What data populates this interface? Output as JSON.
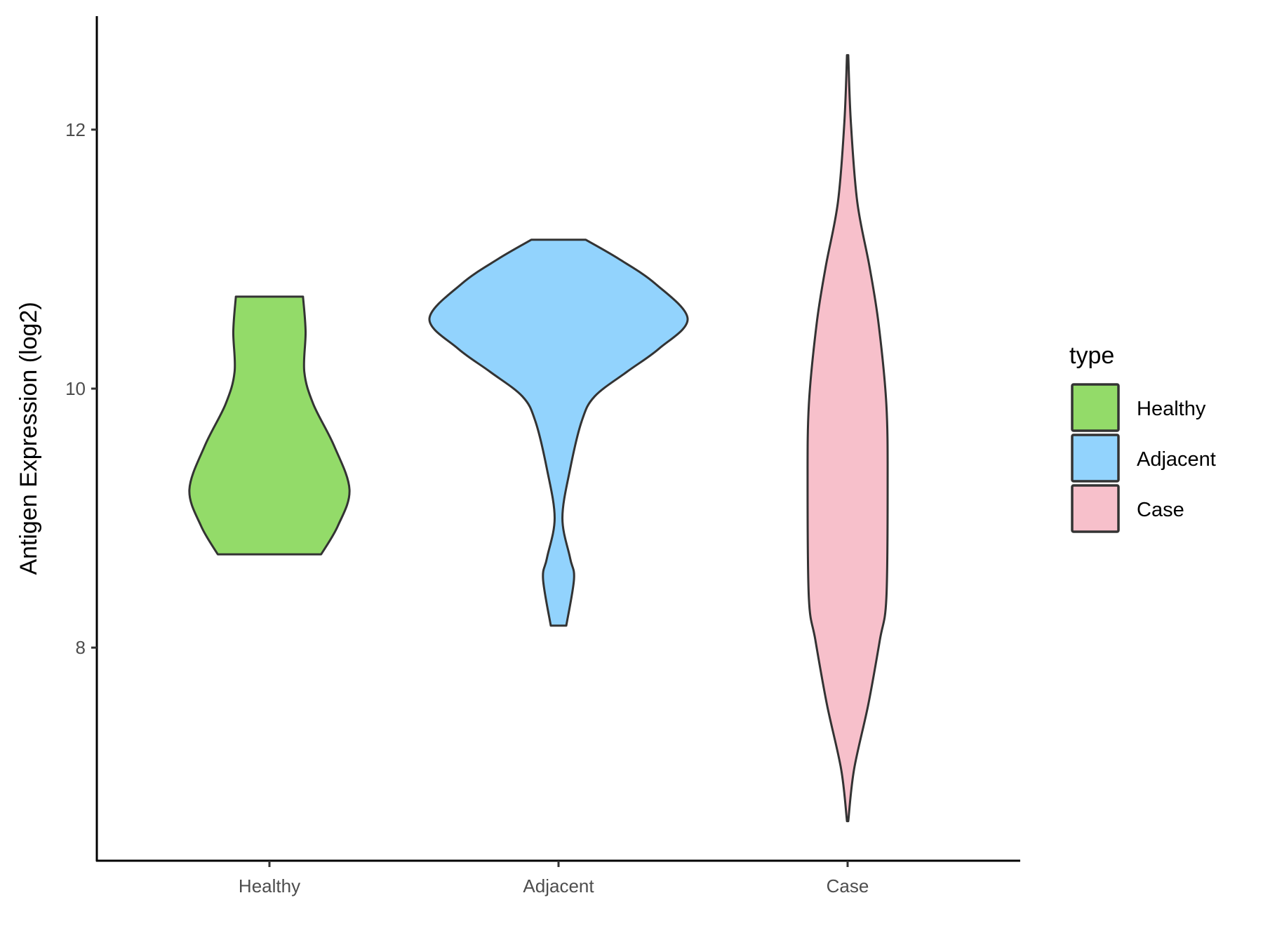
{
  "chart_data": {
    "type": "violin",
    "title": "",
    "xlabel": "",
    "ylabel": "Antigen Expression (log2)",
    "categories": [
      "Healthy",
      "Adjacent",
      "Case"
    ],
    "yticks": [
      8,
      10,
      12
    ],
    "ylim": [
      6.35,
      12.875
    ],
    "grid": false,
    "legend": {
      "title": "type",
      "placement": "right",
      "entries": [
        "Healthy",
        "Adjacent",
        "Case"
      ]
    },
    "colors": {
      "Healthy": "#93DB69",
      "Adjacent": "#92D3FD",
      "Case": "#F7C0CB",
      "outline": "#333333"
    },
    "series": [
      {
        "name": "Healthy",
        "profile": [
          [
            10.71,
            0.26
          ],
          [
            10.44,
            0.28
          ],
          [
            10.13,
            0.27
          ],
          [
            9.88,
            0.34
          ],
          [
            9.56,
            0.5
          ],
          [
            9.22,
            0.62
          ],
          [
            8.94,
            0.53
          ],
          [
            8.72,
            0.4
          ]
        ]
      },
      {
        "name": "Adjacent",
        "profile": [
          [
            11.15,
            0.21
          ],
          [
            11.0,
            0.47
          ],
          [
            10.81,
            0.75
          ],
          [
            10.54,
            1.0
          ],
          [
            10.31,
            0.78
          ],
          [
            10.13,
            0.53
          ],
          [
            9.94,
            0.28
          ],
          [
            9.75,
            0.18
          ],
          [
            9.38,
            0.09
          ],
          [
            9.0,
            0.03
          ],
          [
            8.69,
            0.09
          ],
          [
            8.53,
            0.12
          ],
          [
            8.17,
            0.06
          ]
        ]
      },
      {
        "name": "Case",
        "profile": [
          [
            12.575,
            0.005
          ],
          [
            12.06,
            0.025
          ],
          [
            11.44,
            0.075
          ],
          [
            10.94,
            0.17
          ],
          [
            10.5,
            0.24
          ],
          [
            9.88,
            0.3
          ],
          [
            9.25,
            0.31
          ],
          [
            8.38,
            0.3
          ],
          [
            8.06,
            0.25
          ],
          [
            7.56,
            0.16
          ],
          [
            7.06,
            0.05
          ],
          [
            6.66,
            0.005
          ]
        ]
      }
    ]
  }
}
